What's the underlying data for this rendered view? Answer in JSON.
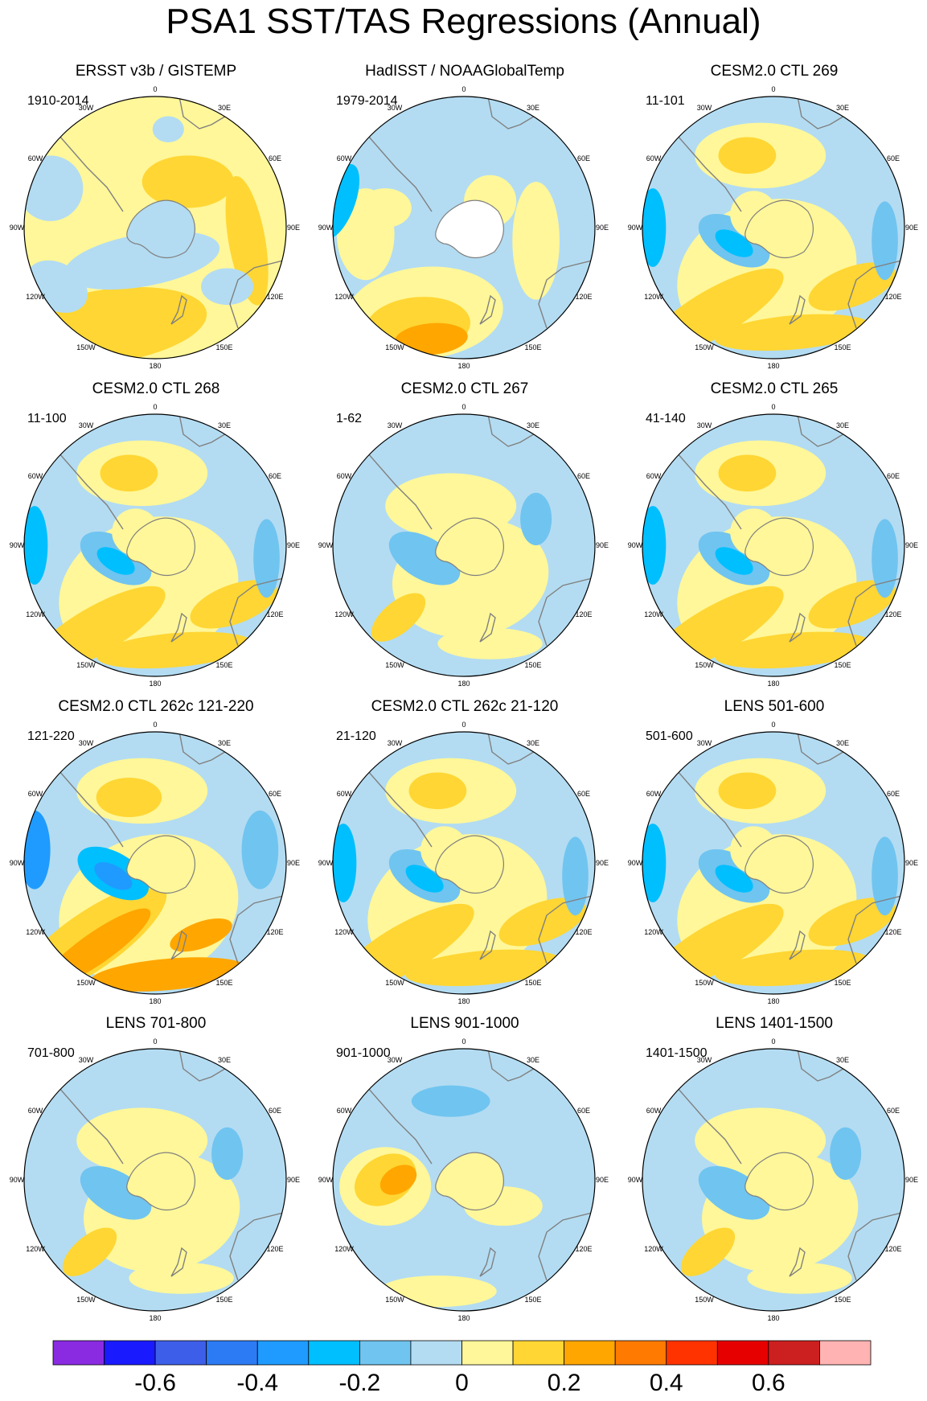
{
  "title": "PSA1 SST/TAS Regressions (Annual)",
  "colors": {
    "land_gray": "#808080",
    "missing": "#ffffff",
    "palette": [
      "#8a2be2",
      "#1a1aff",
      "#3d5ee8",
      "#2c7bf5",
      "#1f9bff",
      "#00bfff",
      "#70c4f0",
      "#b3dcf2",
      "#fff799",
      "#ffd633",
      "#ffa600",
      "#ff7a00",
      "#ff3300",
      "#e60000",
      "#cc1f1f",
      "#ffb3b3"
    ]
  },
  "lon_labels": [
    "0",
    "30E",
    "60E",
    "90E",
    "120E",
    "150E",
    "180",
    "150W",
    "120W",
    "90W",
    "60W",
    "30W"
  ],
  "panels": [
    {
      "title": "ERSST v3b / GISTEMP",
      "period": "1910-2014",
      "pattern": "obs1"
    },
    {
      "title": "HadISST / NOAAGlobalTemp",
      "period": "1979-2014",
      "pattern": "obs2"
    },
    {
      "title": "CESM2.0 CTL 269",
      "period": "11-101",
      "pattern": "model"
    },
    {
      "title": "CESM2.0 CTL 268",
      "period": "11-100",
      "pattern": "model"
    },
    {
      "title": "CESM2.0 CTL 267",
      "period": "1-62",
      "pattern": "weak"
    },
    {
      "title": "CESM2.0 CTL 265",
      "period": "41-140",
      "pattern": "model"
    },
    {
      "title": "CESM2.0 CTL 262c 121-220",
      "period": "121-220",
      "pattern": "strong"
    },
    {
      "title": "CESM2.0 CTL 262c 21-120",
      "period": "21-120",
      "pattern": "model"
    },
    {
      "title": "LENS 501-600",
      "period": "501-600",
      "pattern": "model"
    },
    {
      "title": "LENS 701-800",
      "period": "701-800",
      "pattern": "weak"
    },
    {
      "title": "LENS 901-1000",
      "period": "901-1000",
      "pattern": "lens9"
    },
    {
      "title": "LENS 1401-1500",
      "period": "1401-1500",
      "pattern": "weak"
    }
  ],
  "colorbar": {
    "labels": [
      "-0.6",
      "-0.4",
      "-0.2",
      "0",
      "0.2",
      "0.4",
      "0.6"
    ]
  }
}
